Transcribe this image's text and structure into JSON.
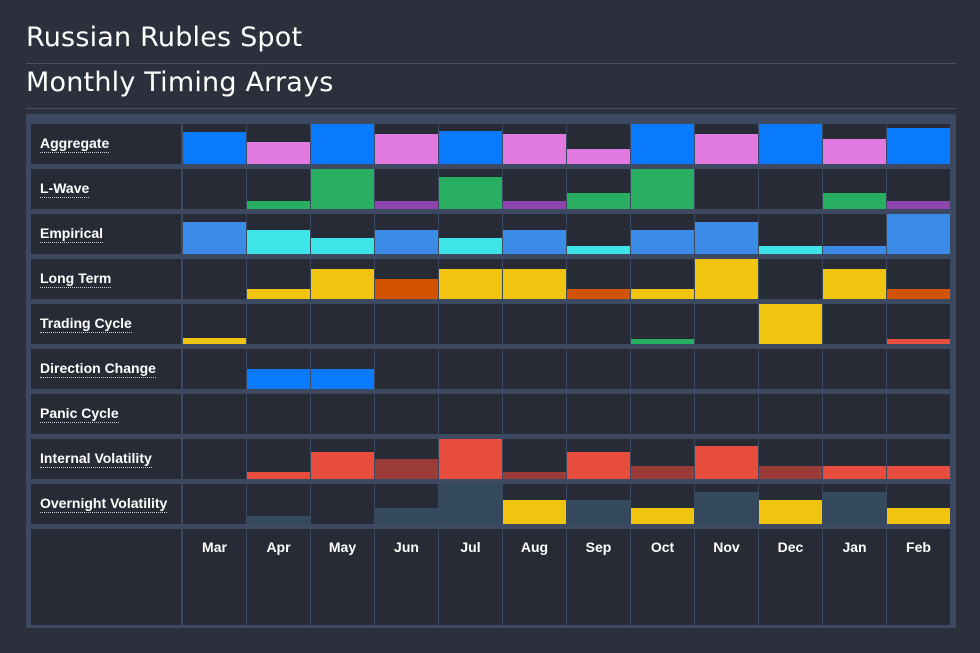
{
  "header": {
    "title": "Russian Rubles Spot",
    "subtitle": "Monthly Timing Arrays"
  },
  "colors": {
    "background": "#2b303c",
    "cell": "#262b36",
    "grid": "#3c4961"
  },
  "chart_data": {
    "type": "heatmap",
    "months": [
      "Mar",
      "Apr",
      "May",
      "Jun",
      "Jul",
      "Aug",
      "Sep",
      "Oct",
      "Nov",
      "Dec",
      "Jan",
      "Feb"
    ],
    "rows": [
      {
        "label": "Aggregate",
        "levels": [
          0.8,
          0.55,
          1.0,
          0.75,
          0.82,
          0.75,
          0.38,
          1.0,
          0.75,
          1.0,
          0.62,
          0.9
        ],
        "colors": [
          "#0a7bff",
          "#e07ae2",
          "#0a7bff",
          "#e07ae2",
          "#0a7bff",
          "#e07ae2",
          "#e07ae2",
          "#0a7bff",
          "#e07ae2",
          "#0a7bff",
          "#e07ae2",
          "#0a7bff"
        ]
      },
      {
        "label": "L-Wave",
        "levels": [
          0,
          0.2,
          1.0,
          0.2,
          0.8,
          0.2,
          0.4,
          1.0,
          0,
          0,
          0.4,
          0.2
        ],
        "colors": [
          "#27ae60",
          "#27ae60",
          "#27ae60",
          "#8e44ad",
          "#27ae60",
          "#8e44ad",
          "#27ae60",
          "#27ae60",
          "#27ae60",
          "#27ae60",
          "#27ae60",
          "#8e44ad"
        ]
      },
      {
        "label": "Empirical",
        "levels": [
          0.8,
          0.6,
          0.4,
          0.6,
          0.4,
          0.6,
          0.2,
          0.6,
          0.8,
          0.2,
          0.2,
          1.0
        ],
        "colors": [
          "#3b8be8",
          "#3de4e8",
          "#3de4e8",
          "#3b8be8",
          "#3de4e8",
          "#3b8be8",
          "#3de4e8",
          "#3b8be8",
          "#3b8be8",
          "#3de4e8",
          "#3b8be8",
          "#3b8be8"
        ]
      },
      {
        "label": "Long Term",
        "levels": [
          0,
          0.25,
          0.75,
          0.5,
          0.75,
          0.75,
          0.25,
          0.25,
          1.0,
          0,
          0.75,
          0.25
        ],
        "colors": [
          "#f1c40f",
          "#f1c40f",
          "#f1c40f",
          "#d35400",
          "#f1c40f",
          "#f1c40f",
          "#d35400",
          "#f1c40f",
          "#f1c40f",
          "#f1c40f",
          "#f1c40f",
          "#d35400"
        ]
      },
      {
        "label": "Trading Cycle",
        "levels": [
          0.15,
          0,
          0,
          0,
          0,
          0,
          0,
          0.12,
          0,
          1.0,
          0,
          0.12
        ],
        "colors": [
          "#f1c40f",
          "#f1c40f",
          "#f1c40f",
          "#f1c40f",
          "#f1c40f",
          "#f1c40f",
          "#f1c40f",
          "#27ae60",
          "#f1c40f",
          "#f1c40f",
          "#f1c40f",
          "#e74c3c"
        ]
      },
      {
        "label": "Direction Change",
        "levels": [
          0,
          0.5,
          0.5,
          0,
          0,
          0,
          0,
          0,
          0,
          0,
          0,
          0
        ],
        "colors": [
          "#0a7bff",
          "#0a7bff",
          "#0a7bff",
          "#0a7bff",
          "#0a7bff",
          "#0a7bff",
          "#0a7bff",
          "#0a7bff",
          "#0a7bff",
          "#0a7bff",
          "#0a7bff",
          "#0a7bff"
        ]
      },
      {
        "label": "Panic Cycle",
        "levels": [
          0,
          0,
          0,
          0,
          0,
          0,
          0,
          0,
          0,
          0,
          0,
          0
        ],
        "colors": [
          "#e74c3c",
          "#e74c3c",
          "#e74c3c",
          "#e74c3c",
          "#e74c3c",
          "#e74c3c",
          "#e74c3c",
          "#e74c3c",
          "#e74c3c",
          "#e74c3c",
          "#e74c3c",
          "#e74c3c"
        ]
      },
      {
        "label": "Internal Volatility",
        "levels": [
          0,
          0.17,
          0.67,
          0.5,
          1.0,
          0.17,
          0.67,
          0.33,
          0.83,
          0.33,
          0.33,
          0.33
        ],
        "colors": [
          "#e74c3c",
          "#e74c3c",
          "#e74c3c",
          "#9b3b37",
          "#e74c3c",
          "#9b3b37",
          "#e74c3c",
          "#9b3b37",
          "#e74c3c",
          "#9b3b37",
          "#e74c3c",
          "#e74c3c"
        ]
      },
      {
        "label": "Overnight Volatility",
        "levels": [
          0,
          0.2,
          0,
          0.4,
          1.0,
          0.6,
          0.6,
          0.4,
          0.8,
          0.6,
          0.8,
          0.4
        ],
        "colors": [
          "#34495e",
          "#34495e",
          "#34495e",
          "#34495e",
          "#34495e",
          "#f1c40f",
          "#34495e",
          "#f1c40f",
          "#34495e",
          "#f1c40f",
          "#34495e",
          "#f1c40f"
        ]
      }
    ]
  }
}
